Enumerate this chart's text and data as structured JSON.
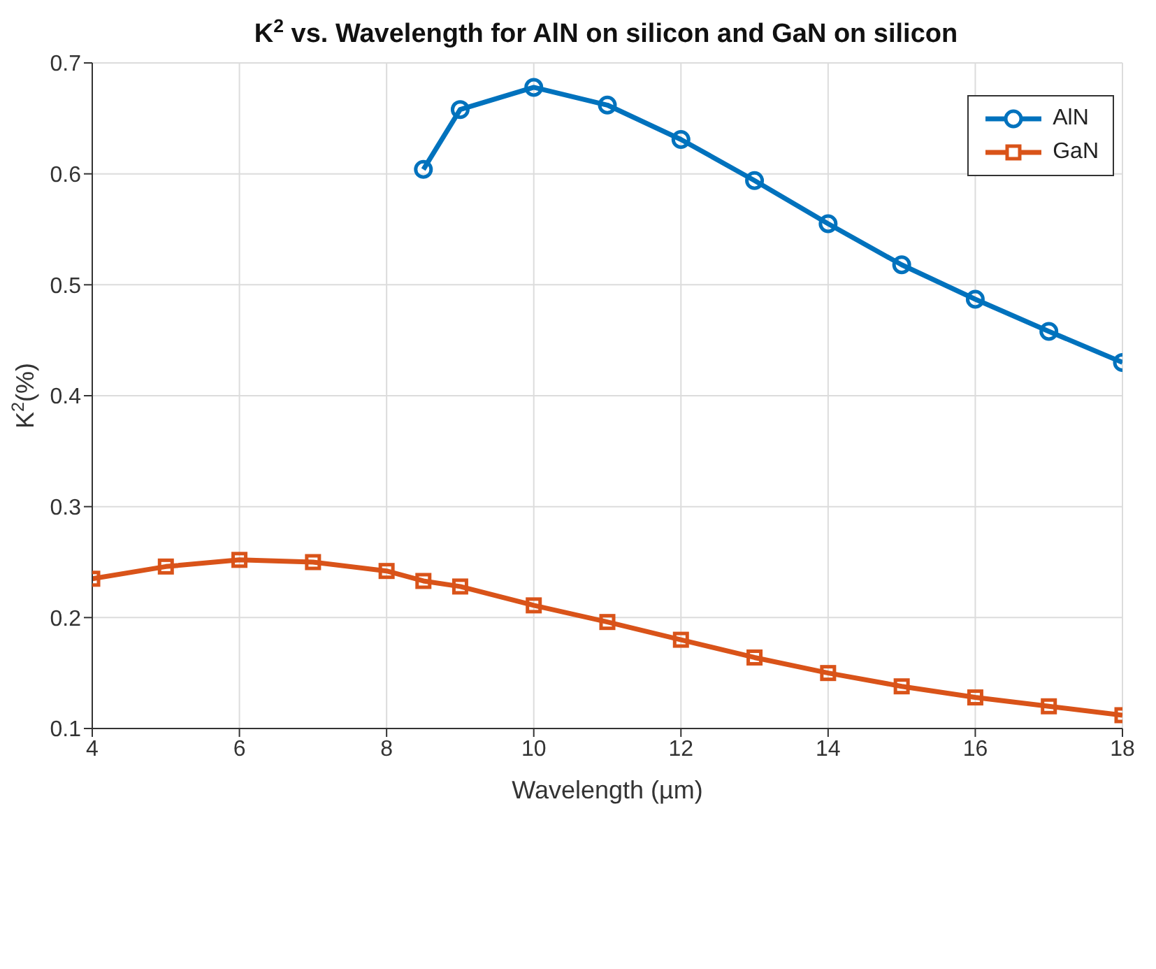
{
  "chart_data": {
    "type": "line",
    "title": "K$^{2}$ vs. Wavelength for AlN on silicon and GaN on silicon",
    "xlabel": "Wavelength (µm)",
    "ylabel": "K$^{2}$(%)",
    "xlim": [
      4,
      18
    ],
    "xticks": [
      4,
      6,
      8,
      10,
      12,
      14,
      16,
      18
    ],
    "ylim": [
      0.1,
      0.7
    ],
    "yticks": [
      0.1,
      0.2,
      0.3,
      0.4,
      0.5,
      0.6,
      0.7
    ],
    "grid": true,
    "legend": "top right",
    "line_style": "solid",
    "series": [
      {
        "name": "AlN",
        "color": "#0072bd",
        "marker": "circle",
        "x": [
          8.5,
          9,
          10,
          11,
          12,
          13,
          14,
          15,
          16,
          17,
          18
        ],
        "values": [
          0.604,
          0.658,
          0.678,
          0.662,
          0.631,
          0.594,
          0.555,
          0.518,
          0.487,
          0.458,
          0.43
        ]
      },
      {
        "name": "GaN",
        "color": "#d95319",
        "marker": "square",
        "x": [
          4,
          5,
          6,
          7,
          8,
          8.5,
          9,
          10,
          11,
          12,
          13,
          14,
          15,
          16,
          17,
          18
        ],
        "values": [
          0.235,
          0.246,
          0.252,
          0.25,
          0.242,
          0.233,
          0.228,
          0.211,
          0.196,
          0.18,
          0.164,
          0.15,
          0.138,
          0.128,
          0.12,
          0.112
        ]
      }
    ]
  }
}
